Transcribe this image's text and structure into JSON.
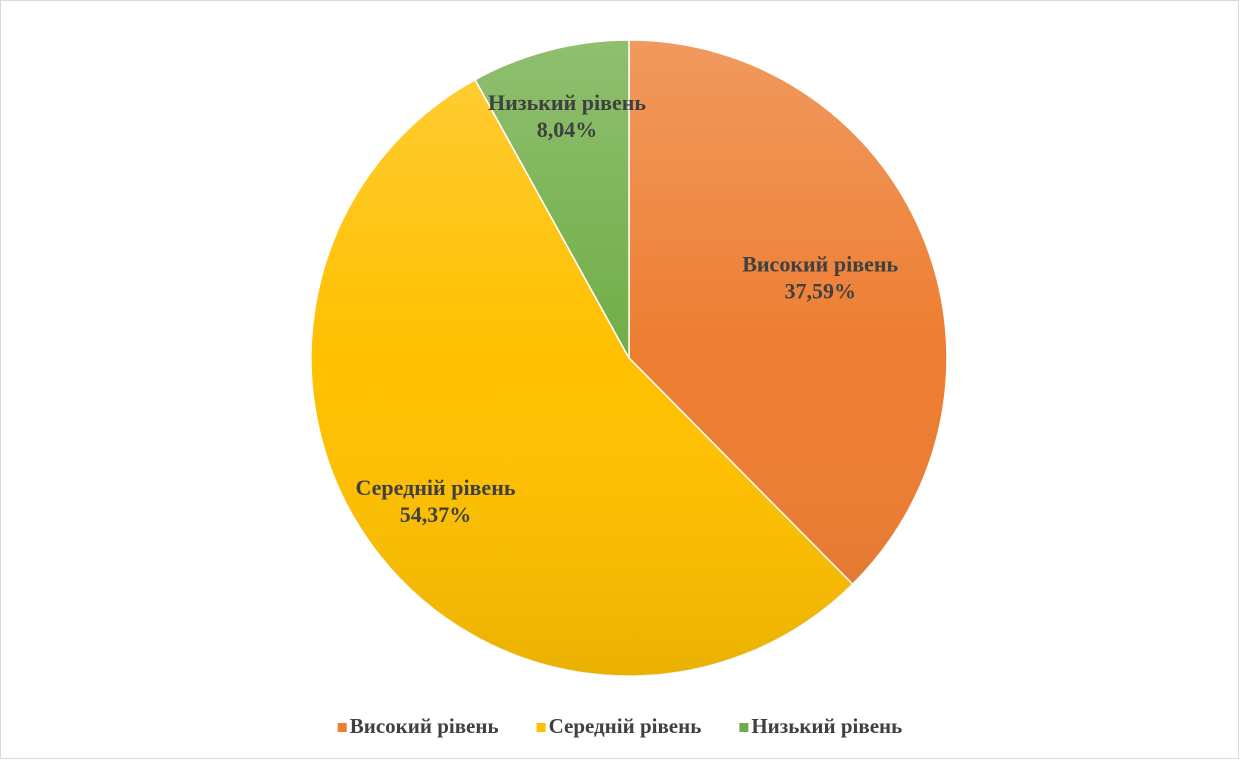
{
  "chart_data": {
    "type": "pie",
    "categories": [
      "Високий рівень",
      "Середній рівень",
      "Низький рівень"
    ],
    "values": [
      37.59,
      54.37,
      8.04
    ],
    "value_labels": [
      "37,59%",
      "54,37%",
      "8,04%"
    ],
    "colors": [
      "#ED7D31",
      "#FFC000",
      "#70AD47"
    ],
    "legend": "bottom"
  }
}
